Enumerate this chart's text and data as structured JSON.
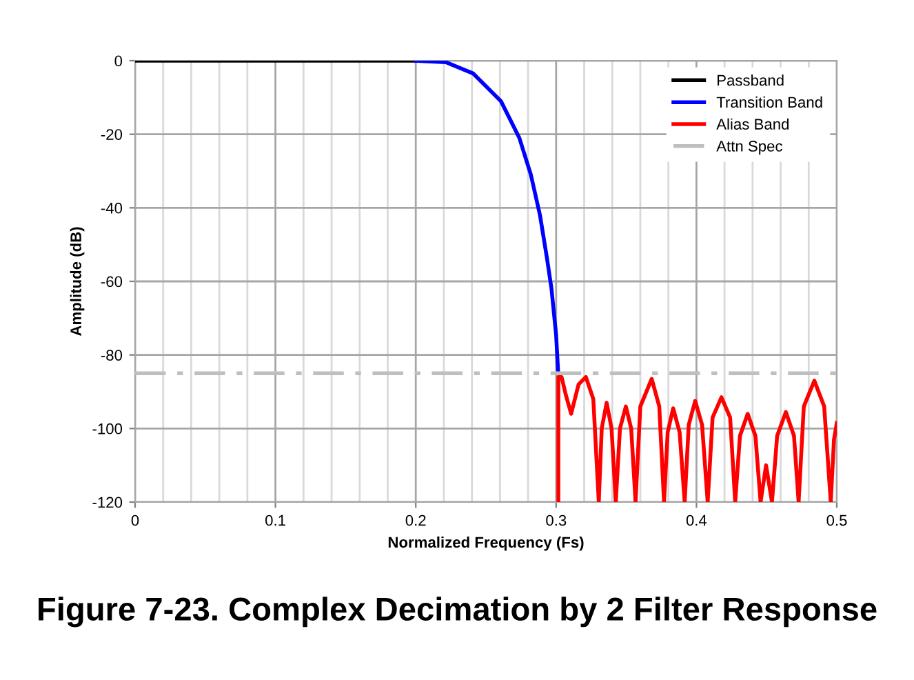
{
  "chart_data": {
    "type": "line",
    "title": "Figure 7-23. Complex Decimation by 2 Filter Response",
    "xlabel": "Normalized Frequency (Fs)",
    "ylabel": "Amplitude (dB)",
    "xlim": [
      0,
      0.5
    ],
    "ylim": [
      -120,
      0
    ],
    "xticks": [
      0,
      {
        "value": 0.02,
        "label": null
      },
      {
        "value": 0.04,
        "label": null
      },
      {
        "value": 0.06,
        "label": null
      },
      {
        "value": 0.08,
        "label": null
      },
      0.1,
      {
        "value": 0.12,
        "label": null
      },
      {
        "value": 0.14,
        "label": null
      },
      {
        "value": 0.16,
        "label": null
      },
      {
        "value": 0.18,
        "label": null
      },
      0.2,
      {
        "value": 0.22,
        "label": null
      },
      {
        "value": 0.24,
        "label": null
      },
      {
        "value": 0.26,
        "label": null
      },
      {
        "value": 0.28,
        "label": null
      },
      0.3,
      {
        "value": 0.32,
        "label": null
      },
      {
        "value": 0.34,
        "label": null
      },
      {
        "value": 0.36,
        "label": null
      },
      {
        "value": 0.38,
        "label": null
      },
      0.4,
      {
        "value": 0.42,
        "label": null
      },
      {
        "value": 0.44,
        "label": null
      },
      {
        "value": 0.46,
        "label": null
      },
      {
        "value": 0.48,
        "label": null
      },
      0.5
    ],
    "yticks": [
      0,
      -20,
      -40,
      -60,
      -80,
      -100,
      -120
    ],
    "grid": true,
    "legend": "top right",
    "marker": "none",
    "series": [
      {
        "name": "Passband",
        "color": "#000000",
        "x": [
          0,
          0.2
        ],
        "values": [
          0,
          0
        ]
      },
      {
        "name": "Transition Band",
        "color": "#0000ff",
        "x": [
          0.2,
          0.2214,
          0.241,
          0.2607,
          0.2738,
          0.282,
          0.2885,
          0.2934,
          0.2967,
          0.3,
          0.3015
        ],
        "values": [
          0,
          -0.4,
          -3.5,
          -11,
          -21,
          -31,
          -42,
          -53.5,
          -62,
          -74.6,
          -85
        ]
      },
      {
        "name": "Alias Band",
        "color": "#ff0000",
        "x": [
          0.3016,
          0.3016,
          0.3039,
          0.307,
          0.3107,
          0.316,
          0.3212,
          0.3265,
          0.3304,
          0.3325,
          0.336,
          0.3395,
          0.3425,
          0.3455,
          0.3497,
          0.3535,
          0.3566,
          0.36,
          0.3681,
          0.3735,
          0.3769,
          0.3795,
          0.3834,
          0.388,
          0.3916,
          0.3945,
          0.3991,
          0.404,
          0.408,
          0.4115,
          0.4178,
          0.424,
          0.4276,
          0.431,
          0.4365,
          0.442,
          0.4457,
          0.4496,
          0.4538,
          0.4575,
          0.4637,
          0.4695,
          0.4728,
          0.4765,
          0.484,
          0.491,
          0.4957,
          0.498,
          0.5
        ],
        "values": [
          -120,
          -86,
          -86,
          -91,
          -96,
          -88,
          -86,
          -92,
          -120,
          -100,
          -93,
          -100,
          -120,
          -100,
          -94,
          -100,
          -120,
          -94,
          -86.5,
          -94,
          -120,
          -101,
          -94.5,
          -101,
          -120,
          -99,
          -92.5,
          -99,
          -120,
          -97,
          -91.5,
          -97,
          -120,
          -102,
          -96,
          -102,
          -120,
          -110,
          -120,
          -102,
          -95.5,
          -102,
          -120,
          -94,
          -87,
          -94,
          -120,
          -103,
          -98.5
        ]
      },
      {
        "name": "Attn Spec",
        "color": "#bfbfbf",
        "line_style": "dashdot",
        "x": [
          0,
          0.5
        ],
        "values": [
          -85,
          -85
        ]
      }
    ]
  }
}
